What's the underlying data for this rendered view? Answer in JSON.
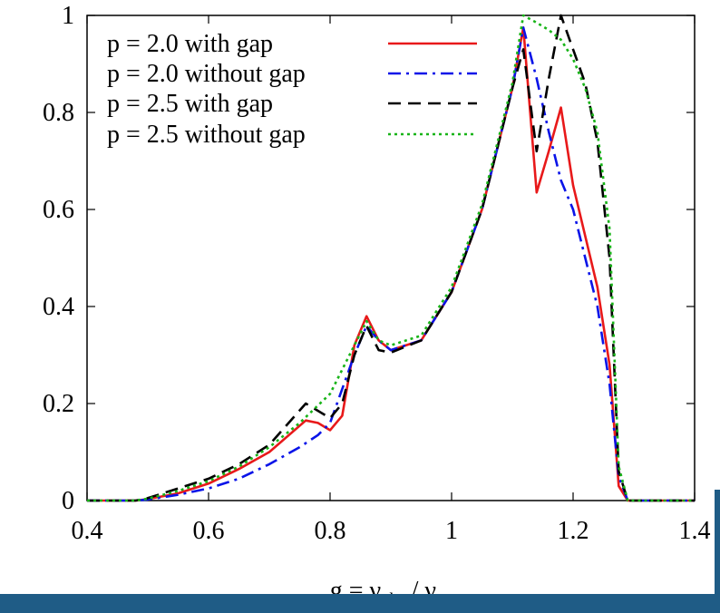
{
  "chart_data": {
    "type": "line",
    "title": "",
    "xlabel": {
      "prefix": "g = ν",
      "sub1": "obs",
      "mid": " / ν",
      "sub2": "em"
    },
    "ylabel": "",
    "xlim": [
      0.4,
      1.4
    ],
    "ylim": [
      0,
      1
    ],
    "xticks": [
      0.4,
      0.6,
      0.8,
      1.0,
      1.2,
      1.4
    ],
    "xtick_labels": [
      "0.4",
      "0.6",
      "0.8",
      "1",
      "1.2",
      "1.4"
    ],
    "yticks": [
      0,
      0.2,
      0.4,
      0.6,
      0.8,
      1.0
    ],
    "ytick_labels": [
      "0",
      "0.2",
      "0.4",
      "0.6",
      "0.8",
      "1"
    ],
    "grid": false,
    "legend_position": "top-left",
    "series": [
      {
        "name": "p = 2.0 with gap",
        "color": "#e8191a",
        "dash": "solid",
        "x": [
          0.4,
          0.48,
          0.5,
          0.55,
          0.6,
          0.65,
          0.7,
          0.76,
          0.78,
          0.8,
          0.82,
          0.84,
          0.86,
          0.88,
          0.9,
          0.95,
          1.0,
          1.05,
          1.1,
          1.118,
          1.14,
          1.16,
          1.18,
          1.2,
          1.24,
          1.26,
          1.275,
          1.29,
          1.3,
          1.4
        ],
        "y": [
          0,
          0,
          0.003,
          0.015,
          0.035,
          0.065,
          0.1,
          0.165,
          0.16,
          0.145,
          0.175,
          0.32,
          0.38,
          0.33,
          0.31,
          0.33,
          0.43,
          0.6,
          0.85,
          0.975,
          0.635,
          0.72,
          0.81,
          0.65,
          0.44,
          0.28,
          0.03,
          0,
          0,
          0
        ]
      },
      {
        "name": "p = 2.0 without gap",
        "color": "#0a14e8",
        "dash": "dashdot",
        "x": [
          0.4,
          0.48,
          0.5,
          0.55,
          0.6,
          0.65,
          0.7,
          0.75,
          0.78,
          0.8,
          0.84,
          0.86,
          0.88,
          0.9,
          0.95,
          1.0,
          1.05,
          1.1,
          1.118,
          1.14,
          1.16,
          1.18,
          1.2,
          1.24,
          1.26,
          1.275,
          1.29,
          1.3,
          1.4
        ],
        "y": [
          0,
          0,
          0.002,
          0.012,
          0.025,
          0.045,
          0.075,
          0.11,
          0.135,
          0.16,
          0.3,
          0.36,
          0.33,
          0.31,
          0.33,
          0.43,
          0.6,
          0.85,
          0.975,
          0.87,
          0.76,
          0.66,
          0.6,
          0.4,
          0.24,
          0.05,
          0,
          0,
          0
        ]
      },
      {
        "name": "p = 2.5 with gap",
        "color": "#000000",
        "dash": "dashed",
        "x": [
          0.4,
          0.48,
          0.5,
          0.55,
          0.6,
          0.65,
          0.7,
          0.76,
          0.78,
          0.8,
          0.82,
          0.84,
          0.86,
          0.88,
          0.9,
          0.95,
          1.0,
          1.05,
          1.1,
          1.118,
          1.14,
          1.16,
          1.18,
          1.22,
          1.24,
          1.26,
          1.275,
          1.29,
          1.3,
          1.4
        ],
        "y": [
          0,
          0,
          0.005,
          0.025,
          0.045,
          0.075,
          0.115,
          0.2,
          0.185,
          0.17,
          0.2,
          0.3,
          0.36,
          0.31,
          0.305,
          0.33,
          0.43,
          0.6,
          0.85,
          0.93,
          0.72,
          0.87,
          1.0,
          0.86,
          0.74,
          0.5,
          0.06,
          0,
          0,
          0
        ]
      },
      {
        "name": "p = 2.5 without gap",
        "color": "#18b418",
        "dash": "dotted",
        "x": [
          0.4,
          0.48,
          0.5,
          0.55,
          0.6,
          0.65,
          0.7,
          0.75,
          0.8,
          0.84,
          0.86,
          0.88,
          0.9,
          0.95,
          1.0,
          1.05,
          1.1,
          1.118,
          1.14,
          1.16,
          1.18,
          1.2,
          1.22,
          1.24,
          1.26,
          1.275,
          1.29,
          1.3,
          1.4
        ],
        "y": [
          0,
          0,
          0.004,
          0.02,
          0.04,
          0.07,
          0.11,
          0.16,
          0.22,
          0.32,
          0.37,
          0.33,
          0.32,
          0.34,
          0.44,
          0.61,
          0.86,
          1.0,
          0.985,
          0.97,
          0.95,
          0.91,
          0.85,
          0.76,
          0.56,
          0.07,
          0,
          0,
          0
        ]
      }
    ]
  }
}
